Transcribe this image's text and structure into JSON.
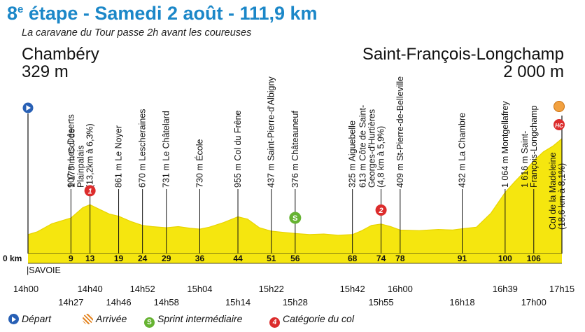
{
  "title": {
    "number": "8",
    "sup": "e",
    "rest": " étape - Samedi 2 août - 111,9 km"
  },
  "subtitle": "La caravane du Tour passe 2h avant les coureuses",
  "start": {
    "city": "Chambéry",
    "altitude": "329 m"
  },
  "finish": {
    "city": "Saint-François-Longchamp",
    "altitude": "2 000 m"
  },
  "zero_label": "0 km",
  "department": "SAVOIE",
  "profile": [
    [
      0,
      329
    ],
    [
      2,
      380
    ],
    [
      5,
      520
    ],
    [
      9,
      620
    ],
    [
      11.5,
      800
    ],
    [
      13,
      850
    ],
    [
      15,
      770
    ],
    [
      17,
      690
    ],
    [
      19,
      650
    ],
    [
      21.5,
      560
    ],
    [
      24,
      490
    ],
    [
      26,
      470
    ],
    [
      29,
      450
    ],
    [
      31.5,
      470
    ],
    [
      34,
      440
    ],
    [
      36,
      425
    ],
    [
      38,
      460
    ],
    [
      41,
      540
    ],
    [
      44,
      640
    ],
    [
      46,
      600
    ],
    [
      48.5,
      450
    ],
    [
      51,
      390
    ],
    [
      53.5,
      370
    ],
    [
      56,
      350
    ],
    [
      59,
      330
    ],
    [
      62,
      340
    ],
    [
      65,
      320
    ],
    [
      68,
      330
    ],
    [
      70,
      400
    ],
    [
      72,
      490
    ],
    [
      74,
      513
    ],
    [
      76,
      470
    ],
    [
      78,
      409
    ],
    [
      82,
      400
    ],
    [
      86,
      420
    ],
    [
      89,
      410
    ],
    [
      91,
      432
    ],
    [
      94,
      460
    ],
    [
      97,
      700
    ],
    [
      100,
      1064
    ],
    [
      102,
      1250
    ],
    [
      104,
      1420
    ],
    [
      106,
      1616
    ],
    [
      108,
      1770
    ],
    [
      110,
      1870
    ],
    [
      111.9,
      2000
    ]
  ],
  "markers": [
    {
      "km": 9,
      "alt": 620,
      "km_label": "9",
      "text": "907 m Les Déserts",
      "lines": []
    },
    {
      "km": 13,
      "alt": 850,
      "km_label": "13",
      "text": "",
      "lines": [
        "1 175 m Col de",
        "Plainpalais",
        "(13,2km à 6,3%)"
      ],
      "cat": "1"
    },
    {
      "km": 19,
      "alt": 650,
      "km_label": "19",
      "text": "861 m Le Noyer",
      "lines": []
    },
    {
      "km": 24,
      "alt": 490,
      "km_label": "24",
      "text": "670 m Lescheraines",
      "lines": []
    },
    {
      "km": 29,
      "alt": 450,
      "km_label": "29",
      "text": "731 m Le Châtelard",
      "lines": []
    },
    {
      "km": 36,
      "alt": 425,
      "km_label": "36",
      "text": "730 m École",
      "lines": []
    },
    {
      "km": 44,
      "alt": 640,
      "km_label": "44",
      "text": "955 m Col du Frêne",
      "lines": []
    },
    {
      "km": 51,
      "alt": 390,
      "km_label": "51",
      "text": "437 m Saint-Pierre-d'Albigny",
      "lines": []
    },
    {
      "km": 56,
      "alt": 350,
      "km_label": "56",
      "text": "376 m Châteauneuf",
      "lines": [],
      "sprint": true
    },
    {
      "km": 68,
      "alt": 330,
      "km_label": "68",
      "text": "325 m Aiguebelle",
      "lines": []
    },
    {
      "km": 74,
      "alt": 513,
      "km_label": "74",
      "text": "",
      "lines": [
        "613 m Côte de Saint-",
        "Georges-d'Hurtières",
        "(4,8 km à 5,9%)"
      ],
      "cat": "2"
    },
    {
      "km": 78,
      "alt": 409,
      "km_label": "78",
      "text": "409 m St-Pierre-de-Belleville",
      "lines": []
    },
    {
      "km": 91,
      "alt": 432,
      "km_label": "91",
      "text": "432 m La Chambre",
      "lines": []
    },
    {
      "km": 100,
      "alt": 1064,
      "km_label": "100",
      "text": "1 064 m Montgellafrey",
      "lines": []
    },
    {
      "km": 106,
      "alt": 1616,
      "km_label": "106",
      "text": "",
      "lines": [
        "1 616 m Saint-",
        "François-Longchamp"
      ]
    },
    {
      "km": 111.9,
      "alt": 2000,
      "km_label": "",
      "text": "",
      "lines": [
        "Col de la Madeleine",
        "(18,6 km à 8,1%)"
      ],
      "cat": "HC"
    }
  ],
  "times": [
    {
      "km": 0,
      "label": "14h00",
      "row": 1
    },
    {
      "km": 9,
      "label": "14h27",
      "row": 2
    },
    {
      "km": 13,
      "label": "14h40",
      "row": 1
    },
    {
      "km": 19,
      "label": "14h46",
      "row": 2
    },
    {
      "km": 24,
      "label": "14h52",
      "row": 1
    },
    {
      "km": 29,
      "label": "14h58",
      "row": 2
    },
    {
      "km": 36,
      "label": "15h04",
      "row": 1
    },
    {
      "km": 44,
      "label": "15h14",
      "row": 2
    },
    {
      "km": 51,
      "label": "15h22",
      "row": 1
    },
    {
      "km": 56,
      "label": "15h28",
      "row": 2
    },
    {
      "km": 68,
      "label": "15h42",
      "row": 1
    },
    {
      "km": 74,
      "label": "15h55",
      "row": 2
    },
    {
      "km": 78,
      "label": "16h00",
      "row": 1
    },
    {
      "km": 91,
      "label": "16h18",
      "row": 2
    },
    {
      "km": 100,
      "label": "16h39",
      "row": 1
    },
    {
      "km": 106,
      "label": "17h00",
      "row": 2
    },
    {
      "km": 111.9,
      "label": "17h15",
      "row": 1
    }
  ],
  "legend": {
    "depart": "Départ",
    "arrivee": "Arrivée",
    "sprint": "Sprint intermédiaire",
    "sprint_icon": "S",
    "col": "Catégorie du col",
    "col_icon": "4"
  },
  "colors": {
    "title": "#1b87c8",
    "profile": "#f5e60f",
    "profile_top": "#e8d400",
    "cat": "#dc2c2c",
    "sprint": "#66b332",
    "start": "#2860b5"
  }
}
